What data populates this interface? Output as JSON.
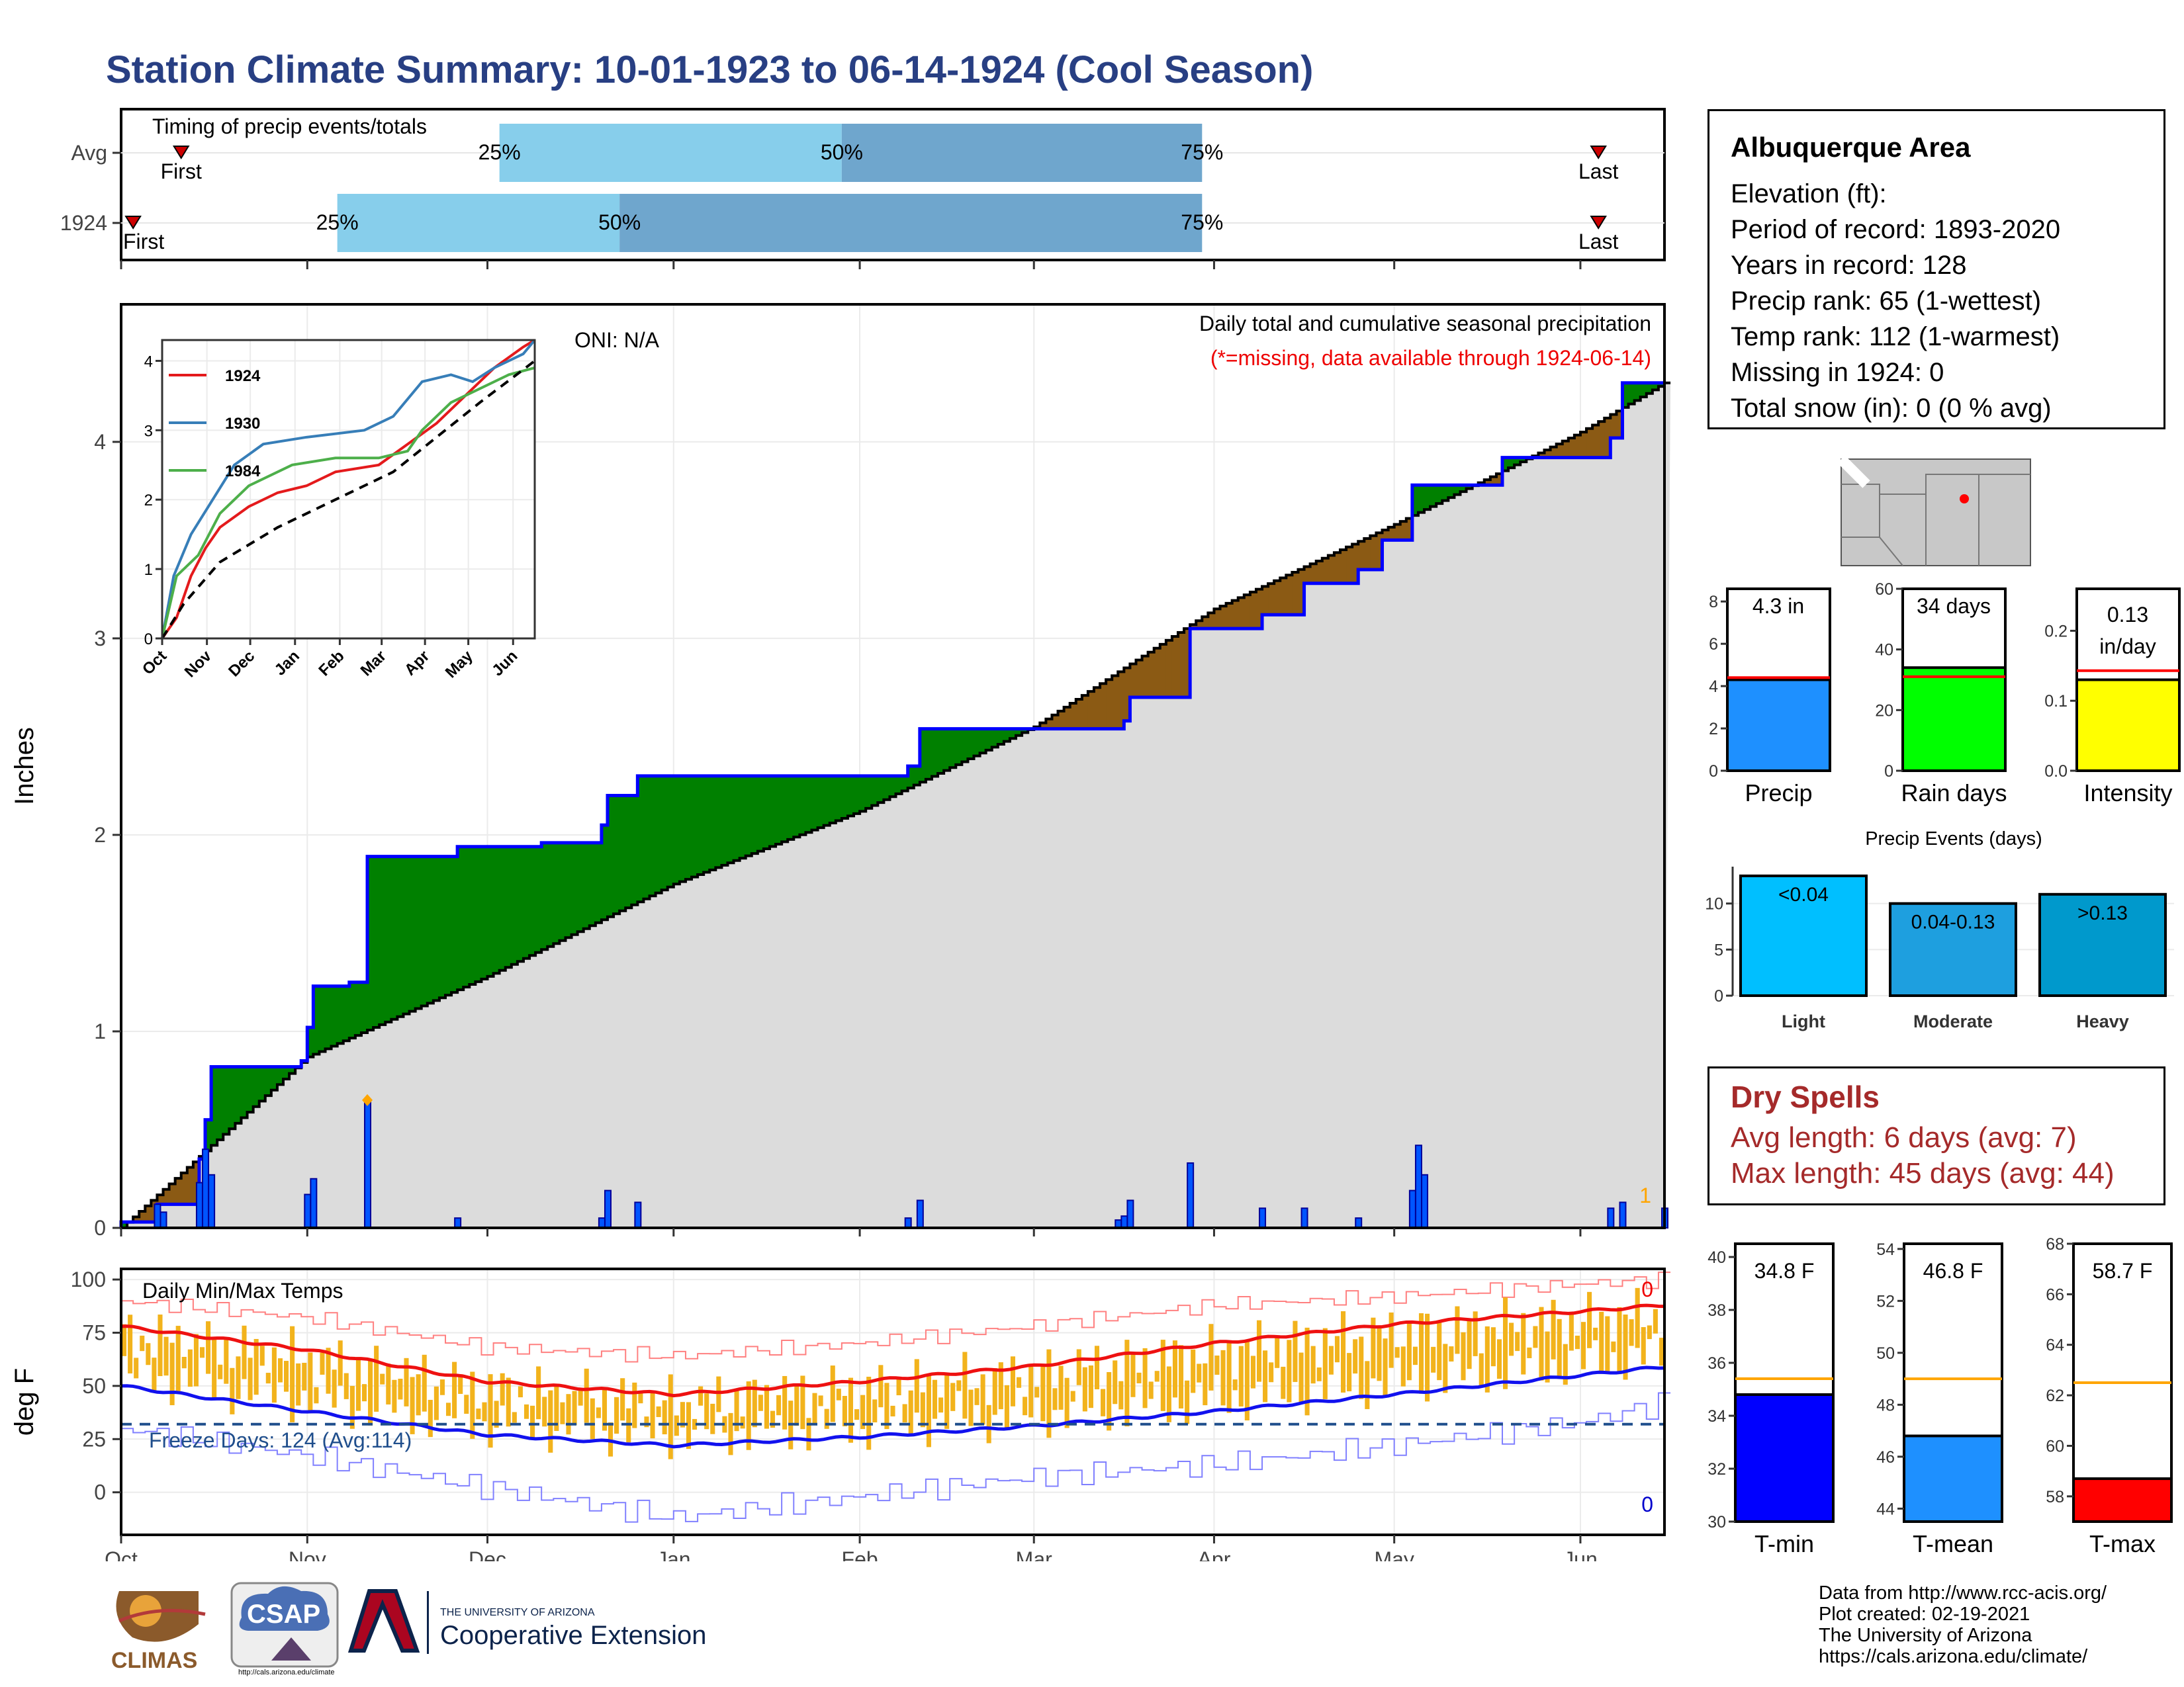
{
  "title": "Station Climate Summary: 10-01-1923 to 06-14-1924 (Cool Season)",
  "timing_panel": {
    "heading": "Timing of precip events/totals",
    "rows": [
      {
        "label": "Avg",
        "first_label": "First",
        "last_label": "Last",
        "first_day": 10,
        "last_day": 246,
        "p25": 63,
        "p50": 120,
        "p75": 180,
        "p25_label": "25%",
        "p50_label": "50%",
        "p75_label": "75%"
      },
      {
        "label": "1924",
        "first_label": "First",
        "last_label": "Last",
        "first_day": 2,
        "last_day": 246,
        "p25": 36,
        "p50": 83,
        "p75": 180,
        "p25_label": "25%",
        "p50_label": "50%",
        "p75_label": "75%"
      }
    ],
    "colors": {
      "q1": "#87ceeb",
      "q2": "#6fa6cd",
      "marker": "#cc0000"
    }
  },
  "precip_panel": {
    "ylabel": "Inches",
    "oni": "ONI: N/A",
    "title": "Daily total and cumulative seasonal precipitation",
    "subtitle": "(*=missing, data available through 1924-06-14)",
    "count_label": "1",
    "yticks": [
      "0",
      "1",
      "2",
      "3",
      "4"
    ]
  },
  "inset": {
    "legend": [
      "1924",
      "1930",
      "1984"
    ],
    "yticks": [
      "0",
      "1",
      "2",
      "3",
      "4"
    ],
    "xticks": [
      "Oct",
      "Nov",
      "Dec",
      "Jan",
      "Feb",
      "Mar",
      "Apr",
      "May",
      "Jun"
    ]
  },
  "temp_panel": {
    "ylabel": "deg F",
    "title": "Daily Min/Max Temps",
    "freeze": "Freeze Days: 124 (Avg:114)",
    "count_top": "0",
    "count_bottom": "0",
    "yticks": [
      "0",
      "25",
      "50",
      "75",
      "100"
    ]
  },
  "months": [
    "Oct",
    "Nov",
    "Dec",
    "Jan",
    "Feb",
    "Mar",
    "Apr",
    "May",
    "Jun"
  ],
  "info": {
    "heading": "Albuquerque Area",
    "lines": [
      "Elevation (ft):",
      "Period of record: 1893-2020",
      "Years in record: 128",
      "Precip rank: 65 (1-wettest)",
      "Temp rank: 112 (1-warmest)",
      "Missing in 1924: 0",
      "Total snow (in): 0 (0 % avg)"
    ]
  },
  "mini_bars": [
    {
      "label": "Precip",
      "value_label": "4.3 in",
      "value": 4.3,
      "avg": 4.4,
      "ymax": 8.6,
      "ticks": [
        "0",
        "2",
        "4",
        "6",
        "8"
      ],
      "tick_vals": [
        0,
        2,
        4,
        6,
        8
      ],
      "color": "#1e90ff"
    },
    {
      "label": "Rain days",
      "value_label": "34 days",
      "value": 34,
      "avg": 31,
      "ymax": 60,
      "ticks": [
        "0",
        "20",
        "40",
        "60"
      ],
      "tick_vals": [
        0,
        20,
        40,
        60
      ],
      "color": "#00ff00"
    },
    {
      "label": "Intensity",
      "value_label": "0.13 in/day",
      "value": 0.13,
      "avg": 0.143,
      "ymax": 0.26,
      "ticks": [
        "0.0",
        "0.1",
        "0.2"
      ],
      "tick_vals": [
        0,
        0.1,
        0.2
      ],
      "color": "#ffff00"
    }
  ],
  "events": {
    "title": "Precip Events (days)",
    "categories": [
      "Light",
      "Moderate",
      "Heavy"
    ],
    "labels": [
      "<0.04",
      "0.04-0.13",
      ">0.13"
    ],
    "values": [
      13,
      10,
      11
    ],
    "ticks": [
      "0",
      "5",
      "10"
    ],
    "colors": [
      "#00bfff",
      "#1e9fdf",
      "#0099cc"
    ]
  },
  "dry_spells": {
    "heading": "Dry Spells",
    "avg": "Avg length: 6 days (avg: 7)",
    "max": "Max length: 45 days (avg: 44)"
  },
  "temp_bars": [
    {
      "label": "T-min",
      "value_label": "34.8 F",
      "value": 34.8,
      "avg": 35.4,
      "ymin": 30,
      "ymax": 40.5,
      "ticks": [
        "30",
        "32",
        "34",
        "36",
        "38",
        "40"
      ],
      "tick_vals": [
        30,
        32,
        34,
        36,
        38,
        40
      ],
      "color": "#0000ff"
    },
    {
      "label": "T-mean",
      "value_label": "46.8 F",
      "value": 46.8,
      "avg": 49.0,
      "ymin": 43.5,
      "ymax": 54.2,
      "ticks": [
        "44",
        "46",
        "48",
        "50",
        "52",
        "54"
      ],
      "tick_vals": [
        44,
        46,
        48,
        50,
        52,
        54
      ],
      "color": "#1e90ff"
    },
    {
      "label": "T-max",
      "value_label": "58.7 F",
      "value": 58.7,
      "avg": 62.5,
      "ymin": 57,
      "ymax": 68,
      "ticks": [
        "58",
        "60",
        "62",
        "64",
        "66",
        "68"
      ],
      "tick_vals": [
        58,
        60,
        62,
        64,
        66,
        68
      ],
      "color": "#ff0000"
    }
  ],
  "credits": [
    "Data from http://www.rcc-acis.org/",
    "Plot created: 02-19-2021",
    "The University of Arizona",
    "https://cals.arizona.edu/climate/"
  ],
  "logos": {
    "climas": "CLIMAS",
    "csap": "CSAP",
    "csap_url": "http://cals.arizona.edu/climate",
    "ua_top": "THE UNIVERSITY OF ARIZONA",
    "ua_bottom": "Cooperative Extension"
  },
  "chart_data": [
    {
      "type": "bar",
      "name": "timing",
      "categories": [
        "Avg",
        "1924"
      ],
      "series": [
        {
          "values_day_of_season": {
            "first": [
              10,
              2
            ],
            "p25": [
              63,
              36
            ],
            "p50": [
              120,
              83
            ],
            "p75": [
              180,
              180
            ],
            "last": [
              246,
              246
            ]
          }
        }
      ]
    },
    {
      "type": "area",
      "name": "precip",
      "xlabel": "",
      "ylabel": "Inches",
      "ylim": [
        0,
        4.7
      ],
      "xlim_days": [
        0,
        257
      ],
      "series": [
        {
          "name": "observed cumulative",
          "color": "#0000ff",
          "steps": [
            [
              0,
              0.03
            ],
            [
              6,
              0.12
            ],
            [
              13,
              0.35
            ],
            [
              14,
              0.55
            ],
            [
              15,
              0.82
            ],
            [
              30,
              0.85
            ],
            [
              31,
              1.02
            ],
            [
              32,
              1.23
            ],
            [
              38,
              1.25
            ],
            [
              41,
              1.89
            ],
            [
              56,
              1.94
            ],
            [
              70,
              1.96
            ],
            [
              80,
              2.05
            ],
            [
              81,
              2.2
            ],
            [
              86,
              2.3
            ],
            [
              131,
              2.35
            ],
            [
              133,
              2.54
            ],
            [
              153,
              2.54
            ],
            [
              167,
              2.58
            ],
            [
              168,
              2.7
            ],
            [
              178,
              3.05
            ],
            [
              190,
              3.12
            ],
            [
              197,
              3.28
            ],
            [
              206,
              3.35
            ],
            [
              210,
              3.5
            ],
            [
              215,
              3.78
            ],
            [
              230,
              3.92
            ],
            [
              248,
              4.02
            ],
            [
              250,
              4.3
            ],
            [
              257,
              4.3
            ]
          ]
        },
        {
          "name": "average cumulative",
          "color": "#000000",
          "points": [
            [
              0,
              0
            ],
            [
              15,
              0.42
            ],
            [
              31,
              0.87
            ],
            [
              61,
              1.28
            ],
            [
              92,
              1.75
            ],
            [
              123,
              2.12
            ],
            [
              152,
              2.55
            ],
            [
              182,
              3.15
            ],
            [
              212,
              3.58
            ],
            [
              243,
              4.05
            ],
            [
              257,
              4.3
            ]
          ]
        }
      ],
      "daily": [
        [
          6,
          0.12
        ],
        [
          7,
          0.08
        ],
        [
          13,
          0.23
        ],
        [
          14,
          0.4
        ],
        [
          15,
          0.27
        ],
        [
          31,
          0.17
        ],
        [
          32,
          0.25
        ],
        [
          41,
          0.64
        ],
        [
          56,
          0.05
        ],
        [
          80,
          0.05
        ],
        [
          81,
          0.19
        ],
        [
          86,
          0.13
        ],
        [
          131,
          0.05
        ],
        [
          133,
          0.14
        ],
        [
          166,
          0.04
        ],
        [
          167,
          0.06
        ],
        [
          168,
          0.14
        ],
        [
          178,
          0.33
        ],
        [
          190,
          0.1
        ],
        [
          197,
          0.1
        ],
        [
          206,
          0.05
        ],
        [
          215,
          0.19
        ],
        [
          216,
          0.42
        ],
        [
          217,
          0.27
        ],
        [
          248,
          0.1
        ],
        [
          250,
          0.13
        ],
        [
          257,
          0.1
        ]
      ]
    },
    {
      "type": "line",
      "name": "inset cumulative",
      "ylim": [
        0,
        4.3
      ],
      "series": [
        {
          "name": "1924",
          "color": "#e41a1c",
          "points": [
            [
              0,
              0
            ],
            [
              10,
              0.3
            ],
            [
              20,
              0.9
            ],
            [
              30,
              1.3
            ],
            [
              40,
              1.6
            ],
            [
              60,
              1.9
            ],
            [
              80,
              2.1
            ],
            [
              100,
              2.2
            ],
            [
              120,
              2.4
            ],
            [
              150,
              2.5
            ],
            [
              170,
              2.8
            ],
            [
              190,
              3.1
            ],
            [
              210,
              3.5
            ],
            [
              230,
              3.9
            ],
            [
              250,
              4.2
            ],
            [
              258,
              4.3
            ]
          ]
        },
        {
          "name": "1930",
          "color": "#377eb8",
          "points": [
            [
              0,
              0
            ],
            [
              8,
              0.9
            ],
            [
              20,
              1.5
            ],
            [
              35,
              2.0
            ],
            [
              50,
              2.5
            ],
            [
              70,
              2.8
            ],
            [
              100,
              2.9
            ],
            [
              140,
              3.0
            ],
            [
              160,
              3.2
            ],
            [
              180,
              3.7
            ],
            [
              200,
              3.8
            ],
            [
              215,
              3.7
            ],
            [
              230,
              3.9
            ],
            [
              250,
              4.1
            ],
            [
              258,
              4.3
            ]
          ]
        },
        {
          "name": "1984",
          "color": "#4daf4a",
          "points": [
            [
              0,
              0
            ],
            [
              10,
              0.9
            ],
            [
              25,
              1.2
            ],
            [
              40,
              1.8
            ],
            [
              60,
              2.2
            ],
            [
              90,
              2.5
            ],
            [
              120,
              2.6
            ],
            [
              150,
              2.6
            ],
            [
              170,
              2.7
            ],
            [
              180,
              3.0
            ],
            [
              200,
              3.4
            ],
            [
              220,
              3.6
            ],
            [
              240,
              3.8
            ],
            [
              258,
              3.9
            ]
          ]
        },
        {
          "name": "average",
          "color": "#000000",
          "dashed": true,
          "points": [
            [
              0,
              0
            ],
            [
              15,
              0.5
            ],
            [
              40,
              1.1
            ],
            [
              80,
              1.6
            ],
            [
              120,
              2.0
            ],
            [
              160,
              2.4
            ],
            [
              190,
              2.9
            ],
            [
              220,
              3.4
            ],
            [
              258,
              4.0
            ]
          ]
        }
      ]
    },
    {
      "type": "bar",
      "name": "temps",
      "ylabel": "deg F",
      "ylim": [
        -20,
        105
      ],
      "freeze_threshold": 32,
      "avg_max": [
        [
          0,
          78
        ],
        [
          31,
          67
        ],
        [
          61,
          52
        ],
        [
          92,
          46
        ],
        [
          123,
          52
        ],
        [
          151,
          59
        ],
        [
          182,
          70
        ],
        [
          212,
          79
        ],
        [
          243,
          85
        ],
        [
          257,
          88
        ]
      ],
      "avg_min": [
        [
          0,
          50
        ],
        [
          31,
          38
        ],
        [
          61,
          27
        ],
        [
          92,
          22
        ],
        [
          123,
          26
        ],
        [
          151,
          31
        ],
        [
          182,
          38
        ],
        [
          212,
          46
        ],
        [
          243,
          55
        ],
        [
          257,
          59
        ]
      ],
      "record_max": [
        [
          0,
          90
        ],
        [
          31,
          82
        ],
        [
          61,
          68
        ],
        [
          92,
          64
        ],
        [
          123,
          70
        ],
        [
          151,
          78
        ],
        [
          182,
          88
        ],
        [
          212,
          92
        ],
        [
          243,
          98
        ],
        [
          257,
          100
        ]
      ],
      "record_min": [
        [
          0,
          30
        ],
        [
          31,
          17
        ],
        [
          61,
          2
        ],
        [
          92,
          -12
        ],
        [
          123,
          -2
        ],
        [
          151,
          7
        ],
        [
          182,
          13
        ],
        [
          212,
          22
        ],
        [
          243,
          33
        ],
        [
          257,
          42
        ]
      ],
      "daily_range_note": "orange bars span daily min to max; approximated around average curves"
    },
    {
      "type": "bar",
      "name": "summary",
      "categories": [
        "Precip",
        "Rain days",
        "Intensity",
        "T-min",
        "T-mean",
        "T-max"
      ],
      "values": [
        4.3,
        34,
        0.13,
        34.8,
        46.8,
        58.7
      ]
    },
    {
      "type": "bar",
      "name": "precip events",
      "categories": [
        "Light",
        "Moderate",
        "Heavy"
      ],
      "values": [
        13,
        10,
        11
      ]
    }
  ]
}
